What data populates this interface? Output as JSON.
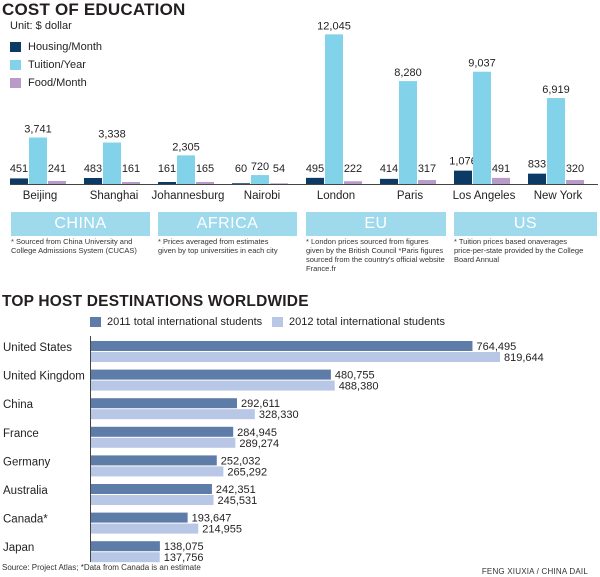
{
  "colors": {
    "housing": "#0b3a64",
    "tuition": "#82d3ea",
    "food": "#b89bc8",
    "region_bar": "#9fd9ec",
    "y2011": "#5e7ca8",
    "y2012": "#b8c7e6",
    "axis": "#444444"
  },
  "chart1": {
    "title": "COST OF EDUCATION",
    "unit": "Unit: $ dollar"
  },
  "chart2": {
    "title": "TOP HOST DESTINATIONS WORLDWIDE"
  },
  "regions": [
    {
      "label": "CHINA",
      "note": "* Sourced from China University and College Admissions System (CUCAS)"
    },
    {
      "label": "AFRICA",
      "note": "* Prices averaged from estimates given by top universities in each city"
    },
    {
      "label": "EU",
      "note": "* London prices sourced from figures given by the British Council *Paris figures sourced from the country's official website France.fr"
    },
    {
      "label": "US",
      "note": "* Tuition prices based onaverages price-per-state provided by the College Board Annual"
    }
  ],
  "source": "Source: Project Atlas; *Data from Canada is an estimate",
  "credit": "FENG XIUXIA / CHINA DAIL",
  "chart_data": [
    {
      "type": "bar",
      "title": "COST OF EDUCATION",
      "subtitle": "Unit: $ dollar",
      "categories": [
        "Beijing",
        "Shanghai",
        "Johannesburg",
        "Nairobi",
        "London",
        "Paris",
        "Los Angeles",
        "New York"
      ],
      "series": [
        {
          "name": "Housing/Month",
          "values": [
            451,
            483,
            161,
            60,
            495,
            414,
            1076,
            833
          ]
        },
        {
          "name": "Tuition/Year",
          "values": [
            3741,
            3338,
            2305,
            720,
            12045,
            8280,
            9037,
            6919
          ]
        },
        {
          "name": "Food/Month",
          "values": [
            241,
            161,
            165,
            54,
            222,
            317,
            491,
            320
          ]
        }
      ],
      "ylim": [
        0,
        13200
      ],
      "legend": "top-left",
      "grid": false
    },
    {
      "type": "bar",
      "orientation": "horizontal",
      "title": "TOP HOST DESTINATIONS WORLDWIDE",
      "categories": [
        "United States",
        "United Kingdom",
        "China",
        "France",
        "Germany",
        "Australia",
        "Canada*",
        "Japan"
      ],
      "series": [
        {
          "name": "2011 total international students",
          "values": [
            764495,
            480755,
            292611,
            284945,
            252032,
            242351,
            193647,
            138075
          ]
        },
        {
          "name": "2012 total international students",
          "values": [
            819644,
            488380,
            328330,
            289274,
            265292,
            245531,
            214955,
            137756
          ]
        }
      ],
      "xlim": [
        0,
        819644
      ],
      "legend": "top",
      "grid": false
    }
  ]
}
